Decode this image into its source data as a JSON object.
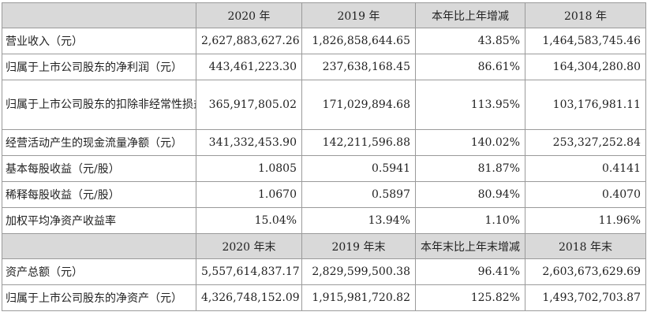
{
  "table": {
    "header1": [
      "2020 年",
      "2019 年",
      "本年比上年增减",
      "2018 年"
    ],
    "rows1": [
      {
        "label": "营业收入（元）",
        "v2020": "2,627,883,627.26",
        "v2019": "1,826,858,644.65",
        "change": "43.85%",
        "v2018": "1,464,583,745.46"
      },
      {
        "label": "归属于上市公司股东的净利润（元）",
        "v2020": "443,461,223.30",
        "v2019": "237,638,168.45",
        "change": "86.61%",
        "v2018": "164,304,280.80"
      },
      {
        "label": "归属于上市公司股东的扣除非经常性损益的净利润（元）",
        "v2020": "365,917,805.02",
        "v2019": "171,029,894.68",
        "change": "113.95%",
        "v2018": "103,176,981.11"
      },
      {
        "label": "经营活动产生的现金流量净额（元）",
        "v2020": "341,332,453.90",
        "v2019": "142,211,596.88",
        "change": "140.02%",
        "v2018": "253,327,252.84"
      },
      {
        "label": "基本每股收益（元/股）",
        "v2020": "1.0805",
        "v2019": "0.5941",
        "change": "81.87%",
        "v2018": "0.4141"
      },
      {
        "label": "稀释每股收益（元/股）",
        "v2020": "1.0670",
        "v2019": "0.5897",
        "change": "80.94%",
        "v2018": "0.4070"
      },
      {
        "label": "加权平均净资产收益率",
        "v2020": "15.04%",
        "v2019": "13.94%",
        "change": "1.10%",
        "v2018": "11.96%"
      }
    ],
    "header2": [
      "2020 年末",
      "2019 年末",
      "本年末比上年末增减",
      "2018 年末"
    ],
    "rows2": [
      {
        "label": "资产总额（元）",
        "v2020": "5,557,614,837.17",
        "v2019": "2,829,599,500.38",
        "change": "96.41%",
        "v2018": "2,603,673,629.69"
      },
      {
        "label": "归属于上市公司股东的净资产（元）",
        "v2020": "4,326,748,152.09",
        "v2019": "1,915,981,720.82",
        "change": "125.82%",
        "v2018": "1,493,702,703.87"
      }
    ]
  }
}
